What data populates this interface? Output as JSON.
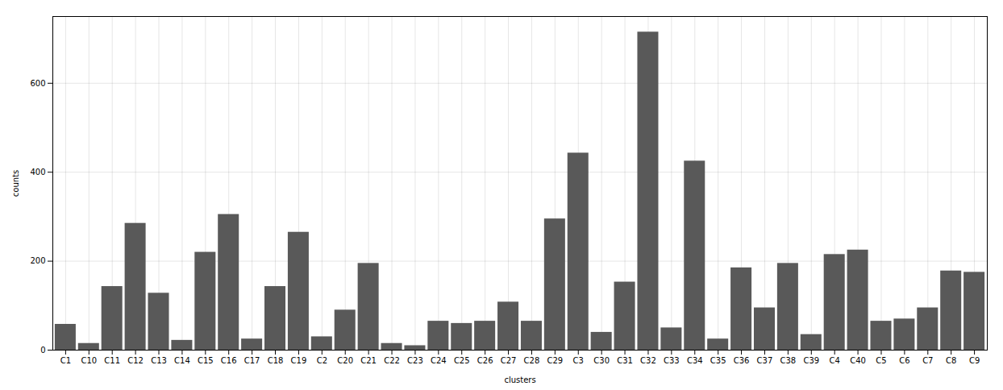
{
  "chart_data": {
    "type": "bar",
    "categories": [
      "C1",
      "C10",
      "C11",
      "C12",
      "C13",
      "C14",
      "C15",
      "C16",
      "C17",
      "C18",
      "C19",
      "C2",
      "C20",
      "C21",
      "C22",
      "C23",
      "C24",
      "C25",
      "C26",
      "C27",
      "C28",
      "C29",
      "C3",
      "C30",
      "C31",
      "C32",
      "C33",
      "C34",
      "C35",
      "C36",
      "C37",
      "C38",
      "C39",
      "C4",
      "C40",
      "C5",
      "C6",
      "C7",
      "C8",
      "C9"
    ],
    "values": [
      58,
      15,
      143,
      285,
      128,
      22,
      220,
      305,
      25,
      143,
      265,
      30,
      90,
      195,
      15,
      10,
      65,
      60,
      65,
      108,
      65,
      295,
      443,
      40,
      153,
      715,
      50,
      425,
      25,
      185,
      95,
      195,
      35,
      215,
      225,
      65,
      70,
      95,
      178,
      175
    ],
    "color": "#595959",
    "xlabel": "clusters",
    "ylabel": "counts",
    "ylim": [
      0,
      750
    ],
    "yticks": [
      0,
      200,
      400,
      600
    ],
    "grid": true
  }
}
